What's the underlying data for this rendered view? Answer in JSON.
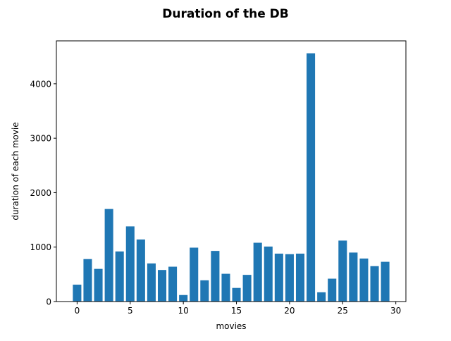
{
  "chart_data": {
    "type": "bar",
    "title": "Duration of the DB",
    "xlabel": "movies",
    "ylabel": "duration of each movie",
    "x": [
      0,
      1,
      2,
      3,
      4,
      5,
      6,
      7,
      8,
      9,
      10,
      11,
      12,
      13,
      14,
      15,
      16,
      17,
      18,
      19,
      20,
      21,
      22,
      23,
      24,
      25,
      26,
      27,
      28,
      29
    ],
    "values": [
      310,
      780,
      600,
      1700,
      920,
      1380,
      1140,
      700,
      580,
      640,
      120,
      990,
      390,
      930,
      510,
      250,
      490,
      1080,
      1010,
      880,
      870,
      880,
      4560,
      170,
      420,
      1120,
      900,
      790,
      650,
      730
    ],
    "xlim": [
      -1.95,
      30.95
    ],
    "ylim": [
      0,
      4788
    ],
    "xticks": [
      0,
      5,
      10,
      15,
      20,
      25,
      30
    ],
    "yticks": [
      0,
      1000,
      2000,
      3000,
      4000
    ],
    "bar_width": 0.8,
    "bar_color": "#1f77b4",
    "grid": false,
    "legend": false
  }
}
